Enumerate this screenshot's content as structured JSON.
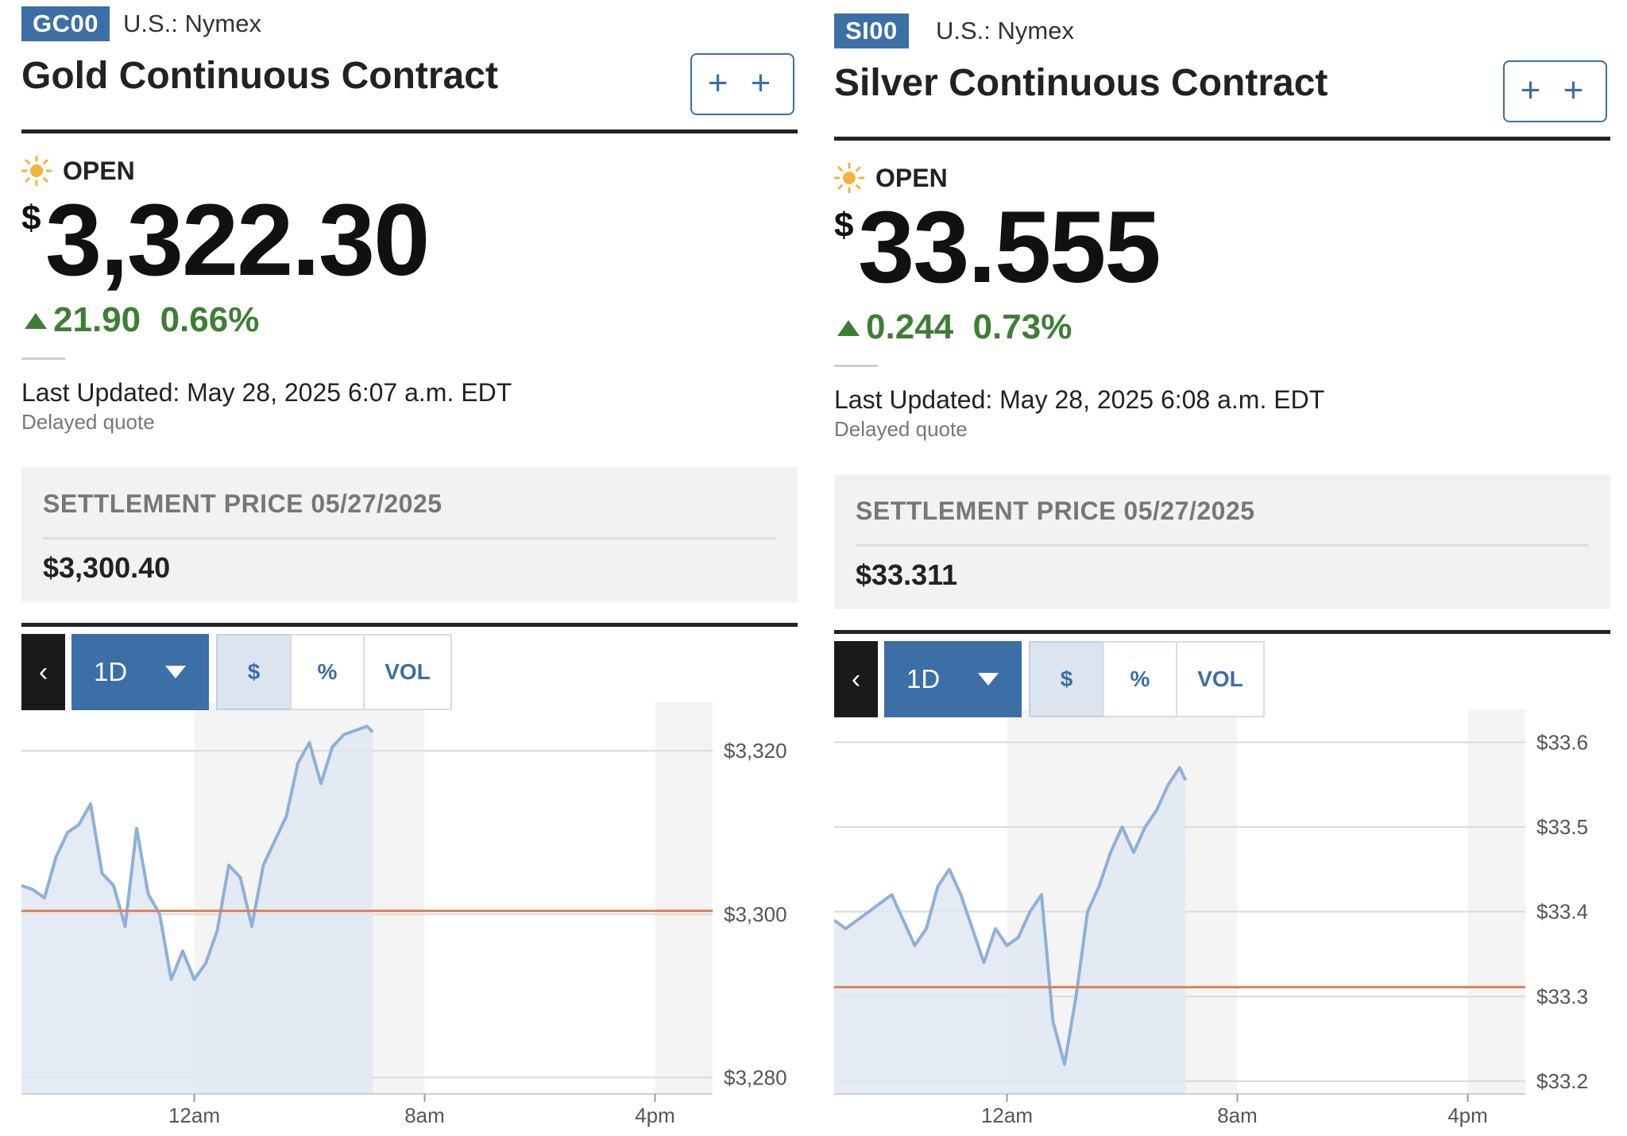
{
  "panels": [
    {
      "ticker": "GC00",
      "exchange": "U.S.: Nymex",
      "name": "Gold Continuous Contract",
      "watch_label": "+ +",
      "market_state": "OPEN",
      "currency": "$",
      "price": "3,322.30",
      "change": "21.90",
      "change_pct": "0.66%",
      "last_updated": "Last Updated: May 28, 2025 6:07 a.m. EDT",
      "quote_note": "Delayed quote",
      "settlement_label": "SETTLEMENT PRICE 05/27/2025",
      "settlement_value": "$3,300.40",
      "controls": {
        "back": "‹",
        "range": "1D",
        "modes": [
          "$",
          "%",
          "VOL"
        ],
        "active_mode": "$"
      },
      "colors": {
        "accent": "#3b6fa5",
        "up": "#3f7d36",
        "line": "#8fb0d8",
        "fill": "#dfe8f2",
        "prev_close": "#d9825a"
      },
      "chart_data": {
        "type": "area",
        "x_ticks": [
          "12am",
          "8am",
          "4pm"
        ],
        "y_ticks": [
          "$3,320",
          "$3,300",
          "$3,280"
        ],
        "ylim": [
          3278,
          3324
        ],
        "xlim_hours": [
          -6,
          18
        ],
        "y_tick_values": [
          3320,
          3300,
          3280
        ],
        "x_tick_hours": [
          0,
          8,
          16
        ],
        "reference_line": 3300.4,
        "x": [
          -6.0,
          -5.6,
          -5.2,
          -4.8,
          -4.4,
          -4.0,
          -3.6,
          -3.2,
          -2.8,
          -2.4,
          -2.0,
          -1.6,
          -1.2,
          -0.8,
          -0.4,
          0.0,
          0.4,
          0.8,
          1.2,
          1.6,
          2.0,
          2.4,
          2.8,
          3.2,
          3.6,
          4.0,
          4.4,
          4.8,
          5.2,
          5.6,
          6.0,
          6.2
        ],
        "values": [
          3303.5,
          3303.0,
          3302.0,
          3307.0,
          3310.0,
          3311.0,
          3313.5,
          3305.0,
          3303.5,
          3298.5,
          3310.5,
          3302.5,
          3300.0,
          3292.0,
          3295.5,
          3292.0,
          3294.0,
          3298.0,
          3306.0,
          3304.5,
          3298.5,
          3306.0,
          3309.0,
          3312.0,
          3318.5,
          3321.0,
          3316.0,
          3320.5,
          3322.0,
          3322.5,
          3323.0,
          3322.3
        ]
      }
    },
    {
      "ticker": "SI00",
      "exchange": "U.S.: Nymex",
      "name": "Silver Continuous Contract",
      "watch_label": "+ +",
      "market_state": "OPEN",
      "currency": "$",
      "price": "33.555",
      "change": "0.244",
      "change_pct": "0.73%",
      "last_updated": "Last Updated: May 28, 2025 6:08 a.m. EDT",
      "quote_note": "Delayed quote",
      "settlement_label": "SETTLEMENT PRICE 05/27/2025",
      "settlement_value": "$33.311",
      "controls": {
        "back": "‹",
        "range": "1D",
        "modes": [
          "$",
          "%",
          "VOL"
        ],
        "active_mode": "$"
      },
      "colors": {
        "accent": "#3b6fa5",
        "up": "#3f7d36",
        "line": "#8fb0d8",
        "fill": "#dfe8f2",
        "prev_close": "#d9825a"
      },
      "chart_data": {
        "type": "area",
        "x_ticks": [
          "12am",
          "8am",
          "4pm"
        ],
        "y_ticks": [
          "$33.6",
          "$33.5",
          "$33.4",
          "$33.3",
          "$33.2"
        ],
        "ylim": [
          33.185,
          33.62
        ],
        "xlim_hours": [
          -6,
          18
        ],
        "y_tick_values": [
          33.6,
          33.5,
          33.4,
          33.3,
          33.2
        ],
        "x_tick_hours": [
          0,
          8,
          16
        ],
        "reference_line": 33.311,
        "x": [
          -6.0,
          -5.6,
          -5.2,
          -4.8,
          -4.4,
          -4.0,
          -3.6,
          -3.2,
          -2.8,
          -2.4,
          -2.0,
          -1.6,
          -1.2,
          -0.8,
          -0.4,
          0.0,
          0.4,
          0.8,
          1.2,
          1.6,
          2.0,
          2.4,
          2.8,
          3.2,
          3.6,
          4.0,
          4.4,
          4.8,
          5.2,
          5.6,
          6.0,
          6.2
        ],
        "values": [
          33.39,
          33.38,
          33.39,
          33.4,
          33.41,
          33.42,
          33.39,
          33.36,
          33.38,
          33.43,
          33.45,
          33.42,
          33.38,
          33.34,
          33.38,
          33.36,
          33.37,
          33.4,
          33.42,
          33.27,
          33.22,
          33.3,
          33.4,
          33.43,
          33.47,
          33.5,
          33.47,
          33.5,
          33.52,
          33.55,
          33.57,
          33.555
        ]
      }
    }
  ]
}
